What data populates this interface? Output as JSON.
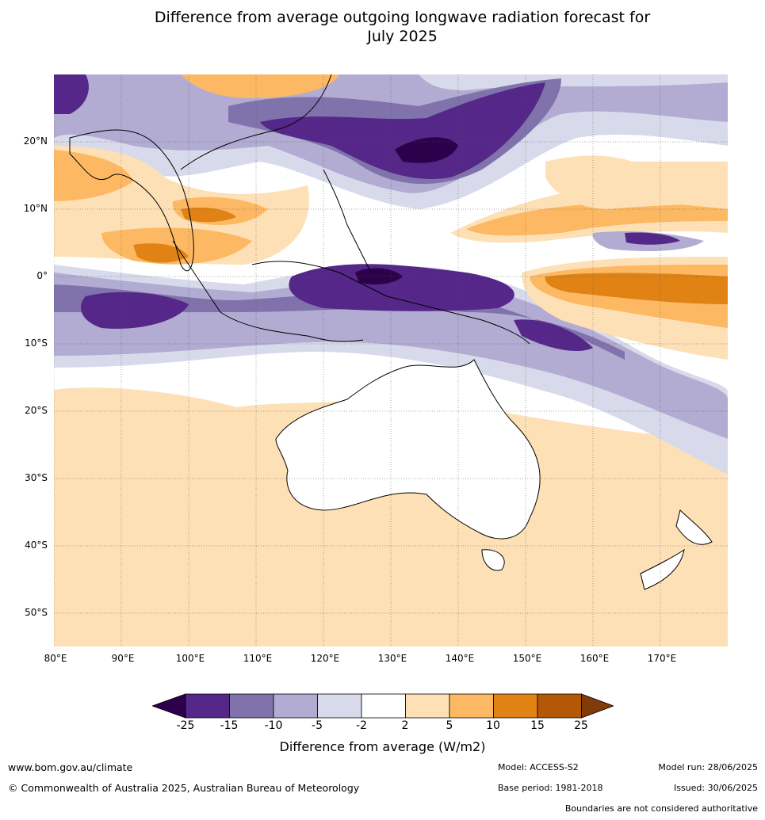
{
  "title": "Difference from average outgoing longwave radiation forecast for July 2025",
  "title_line1": "Difference from average outgoing longwave radiation forecast for",
  "title_line2": "July 2025",
  "map": {
    "lat_labels": [
      "20°N",
      "10°N",
      "0°",
      "10°S",
      "20°S",
      "30°S",
      "40°S",
      "50°S"
    ],
    "lon_labels": [
      "80°E",
      "90°E",
      "100°E",
      "110°E",
      "120°E",
      "130°E",
      "140°E",
      "150°E",
      "160°E",
      "170°E"
    ]
  },
  "colorbar": {
    "ticks": [
      "-25",
      "-15",
      "-10",
      "-5",
      "-2",
      "2",
      "5",
      "10",
      "15",
      "25"
    ],
    "colors": [
      "#2d004b",
      "#542788",
      "#8073ac",
      "#b2abd2",
      "#d8daeb",
      "#ffffff",
      "#fee0b6",
      "#fdb863",
      "#e08214",
      "#b35806",
      "#7f3b08"
    ],
    "label": "Difference from average (W/m2)"
  },
  "footer": {
    "website": "www.bom.gov.au/climate",
    "copyright": "© Commonwealth of Australia 2025, Australian Bureau of Meteorology",
    "model": "Model: ACCESS-S2",
    "base_period": "Base period: 1981-2018",
    "model_run": "Model run: 28/06/2025",
    "issued": "Issued: 30/06/2025",
    "disclaimer": "Boundaries are not considered authoritative"
  }
}
